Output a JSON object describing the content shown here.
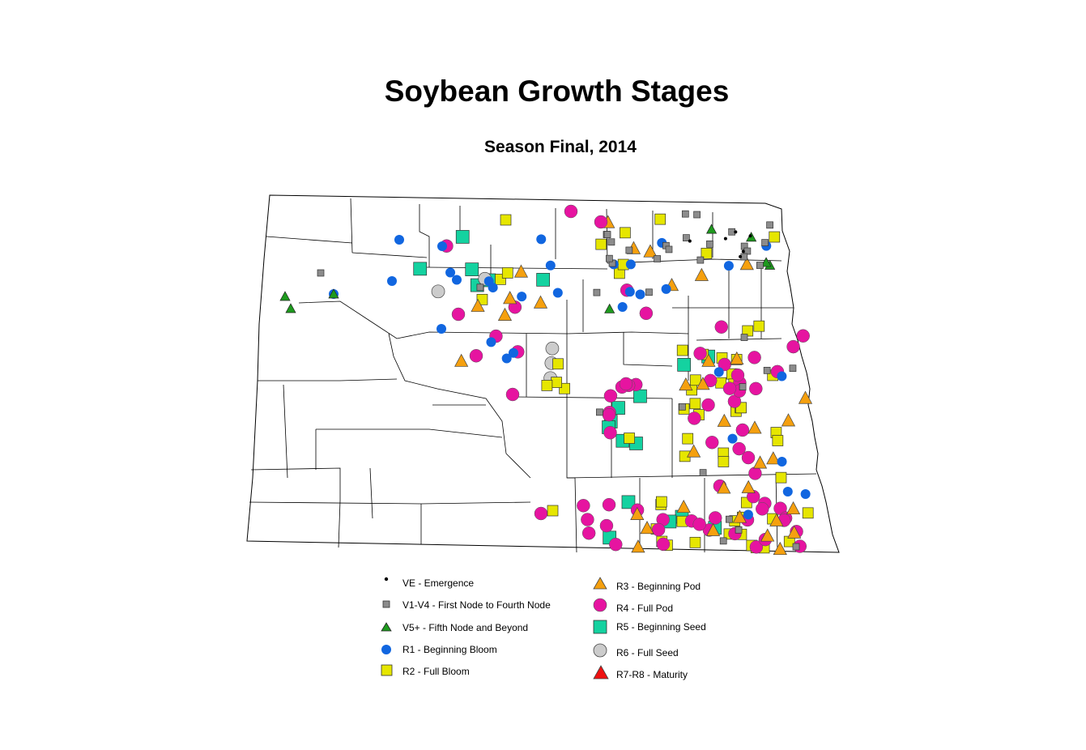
{
  "title": "Soybean Growth Stages",
  "subtitle": "Season Final, 2014",
  "legend": [
    {
      "code": "VE",
      "label": "VE - Emergence",
      "shape": "dot",
      "color": "#000000"
    },
    {
      "code": "V1V4",
      "label": "V1-V4 - First Node to Fourth Node",
      "shape": "square-s",
      "color": "#8c8c8c"
    },
    {
      "code": "V5",
      "label": "V5+ - Fifth Node and Beyond",
      "shape": "tri-s",
      "color": "#1e9a1e"
    },
    {
      "code": "R1",
      "label": "R1 - Beginning Bloom",
      "shape": "circle-m",
      "color": "#1166e0"
    },
    {
      "code": "R2",
      "label": "R2 - Full Bloom",
      "shape": "square-m",
      "color": "#e6e600"
    },
    {
      "code": "R3",
      "label": "R3 - Beginning Pod",
      "shape": "tri-m",
      "color": "#f5a00f"
    },
    {
      "code": "R4",
      "label": "R4 - Full Pod",
      "shape": "circle-l",
      "color": "#e614a0"
    },
    {
      "code": "R5",
      "label": "R5 - Beginning Seed",
      "shape": "square-l",
      "color": "#14d2a0"
    },
    {
      "code": "R6",
      "label": "R6 - Full Seed",
      "shape": "circle-g",
      "color": "#cccccc"
    },
    {
      "code": "R7R8",
      "label": "R7-R8 - Maturity",
      "shape": "tri-l",
      "color": "#ee1111"
    }
  ]
}
